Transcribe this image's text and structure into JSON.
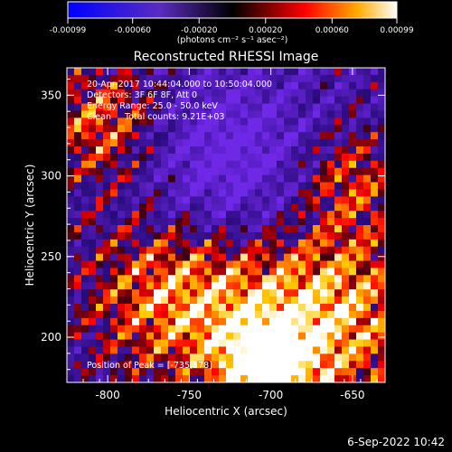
{
  "chart_data": {
    "type": "heatmap",
    "title": "Reconstructed RHESSI Image",
    "xlabel": "Heliocentric X (arcsec)",
    "ylabel": "Heliocentric Y (arcsec)",
    "xlim": [
      -825,
      -630
    ],
    "ylim": [
      172,
      367
    ],
    "x_ticks": [
      -800,
      -750,
      -700,
      -650
    ],
    "y_ticks": [
      200,
      250,
      300,
      350
    ],
    "colorbar": {
      "min": -0.00099,
      "max": 0.00099,
      "ticks": [
        -0.00099,
        -0.0006,
        -0.0002,
        0.0002,
        0.0006,
        0.00099
      ],
      "tick_labels": [
        "-0.00099",
        "-0.00060",
        "-0.00020",
        "0.00020",
        "0.00060",
        "0.00099"
      ],
      "unit_label": "(photons cm⁻² s⁻¹ asec⁻²)"
    },
    "annotations": [
      "20-Apr-2017 10:44:04.000 to 10:50:04.000",
      "Detectors: 3F 6F 8F, Att 0",
      "Energy Range: 25.0 - 50.0 keV",
      "Clean     Total counts: 9.21E+03"
    ],
    "peak_label": "Position of Peak = [-735,178]",
    "peak": {
      "x": -735,
      "y": 178
    },
    "colors": {
      "background": "#000000",
      "negative": "#2a1ad8",
      "zero": "#000000",
      "positive": "#ff2200",
      "max": "#ffffff"
    }
  },
  "footer": {
    "timestamp": "6-Sep-2022 10:42"
  }
}
